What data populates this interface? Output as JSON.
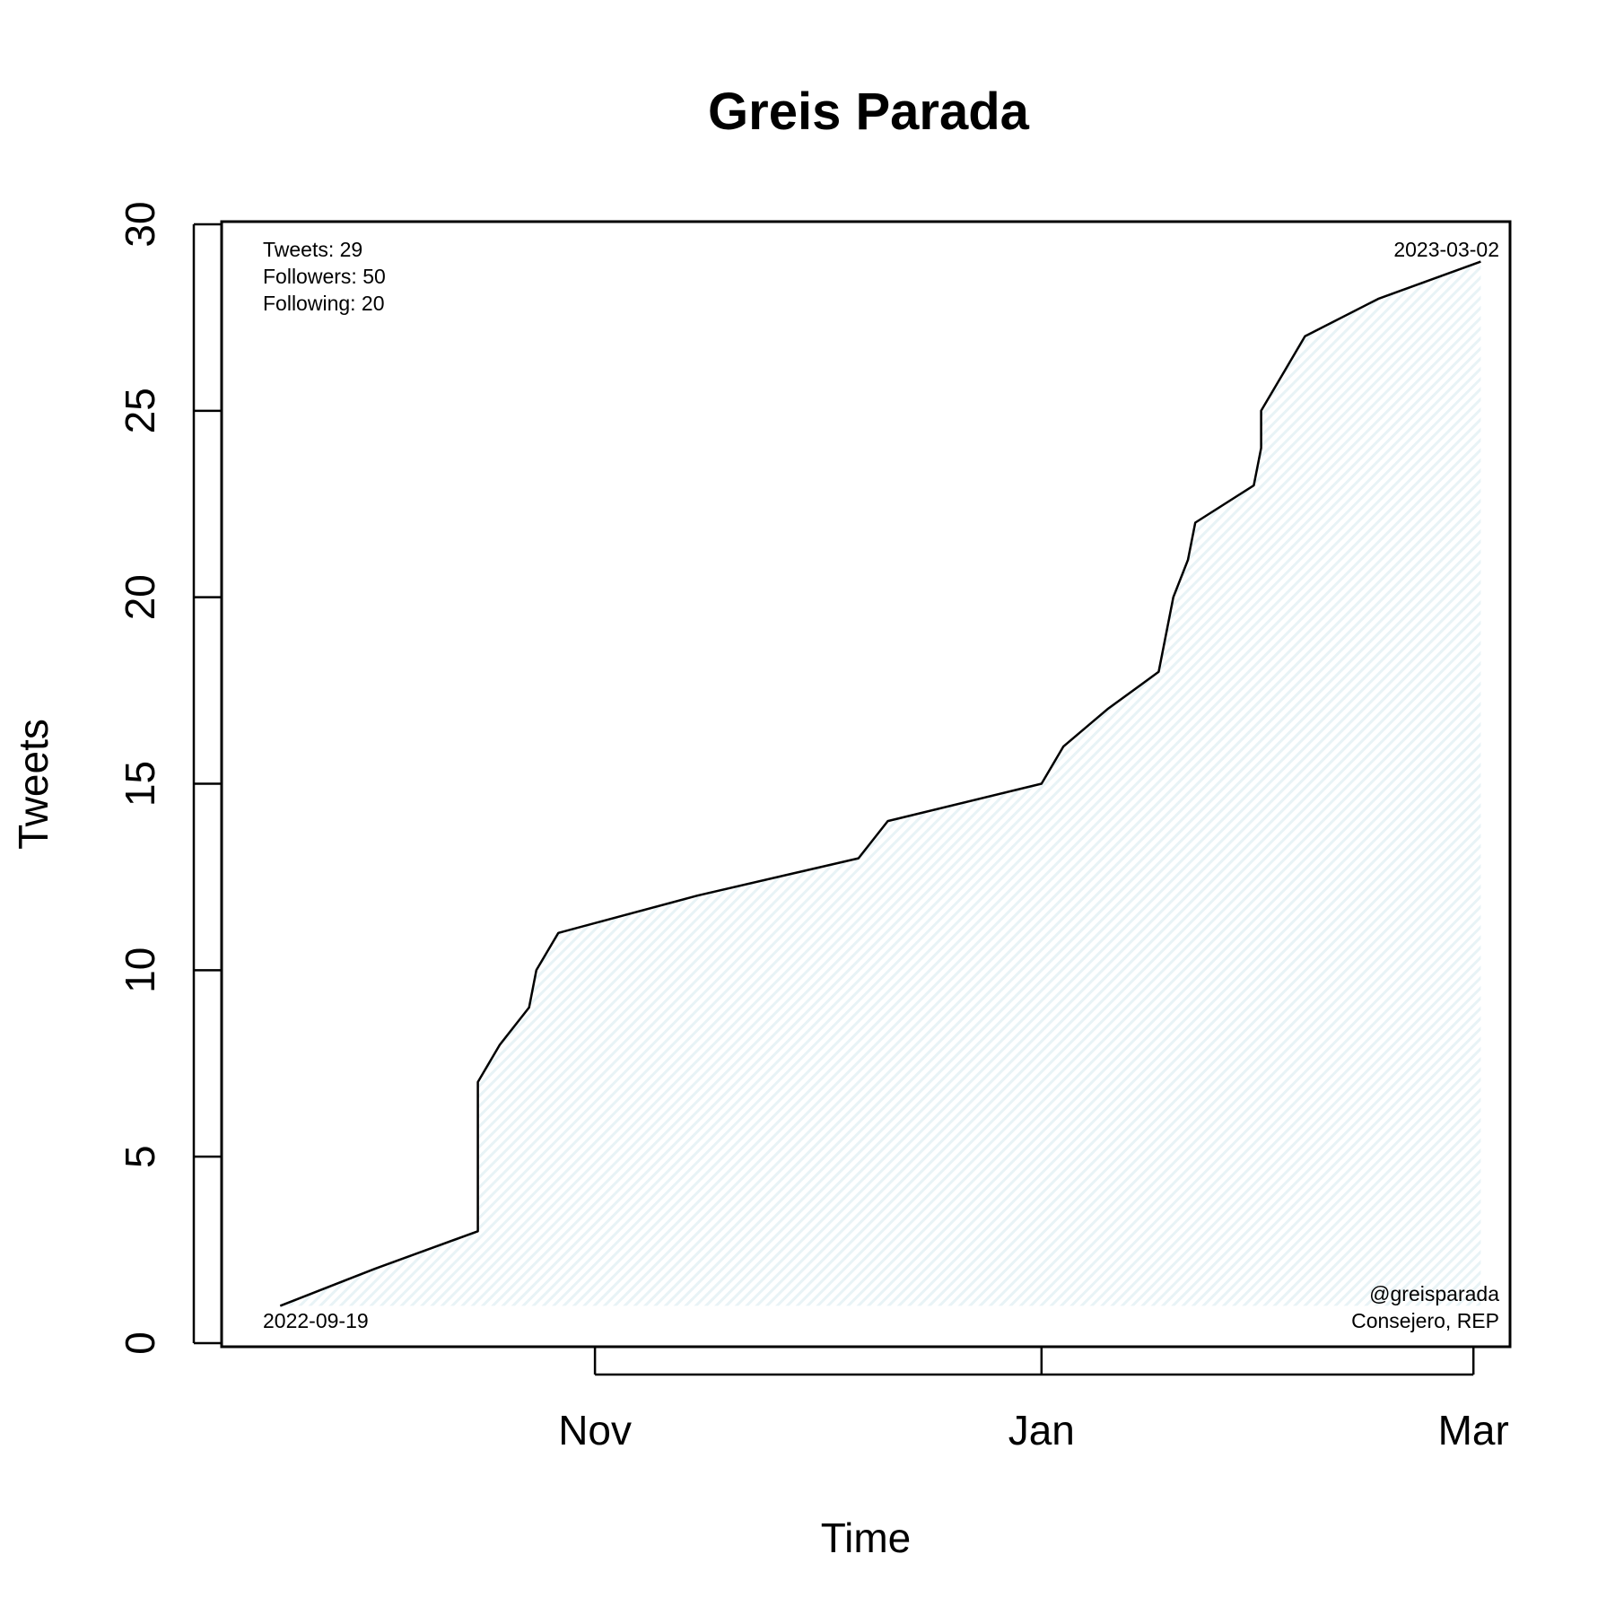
{
  "chart_data": {
    "type": "area",
    "title": "Greis Parada",
    "xlabel": "Time",
    "ylabel": "Tweets",
    "ylim": [
      0,
      30
    ],
    "xlim": [
      "2022-09-11",
      "2023-03-06"
    ],
    "yticks": [
      0,
      5,
      10,
      15,
      20,
      25,
      30
    ],
    "xticks": [
      {
        "date": "2022-11-01",
        "label": "Nov"
      },
      {
        "date": "2023-01-01",
        "label": "Jan"
      },
      {
        "date": "2023-03-01",
        "label": "Mar"
      }
    ],
    "grid": false,
    "fill_color": "#e8f3f6",
    "line_color": "#000000",
    "series": [
      {
        "x": [
          "2022-09-19",
          "2022-10-02",
          "2022-10-16",
          "2022-10-16",
          "2022-10-19",
          "2022-10-23",
          "2022-10-24",
          "2022-10-27",
          "2022-11-15",
          "2022-12-07",
          "2022-12-11",
          "2023-01-01",
          "2023-01-04",
          "2023-01-10",
          "2023-01-17",
          "2023-01-19",
          "2023-01-21",
          "2023-01-22",
          "2023-01-30",
          "2023-01-31",
          "2023-01-31",
          "2023-02-03",
          "2023-02-06",
          "2023-02-16",
          "2023-03-02"
        ],
        "y": [
          1,
          2,
          3,
          7,
          8,
          9,
          10,
          11,
          12,
          13,
          14,
          15,
          16,
          17,
          18,
          20,
          21,
          22,
          23,
          24,
          25,
          26,
          27,
          28,
          29
        ]
      }
    ],
    "annotations": {
      "top_left": [
        "Tweets: 29",
        "Followers: 50",
        "Following: 20"
      ],
      "top_right": "2023-03-02",
      "bottom_left": "2022-09-19",
      "bottom_right": [
        "@greisparada",
        "Consejero, REP"
      ]
    }
  }
}
